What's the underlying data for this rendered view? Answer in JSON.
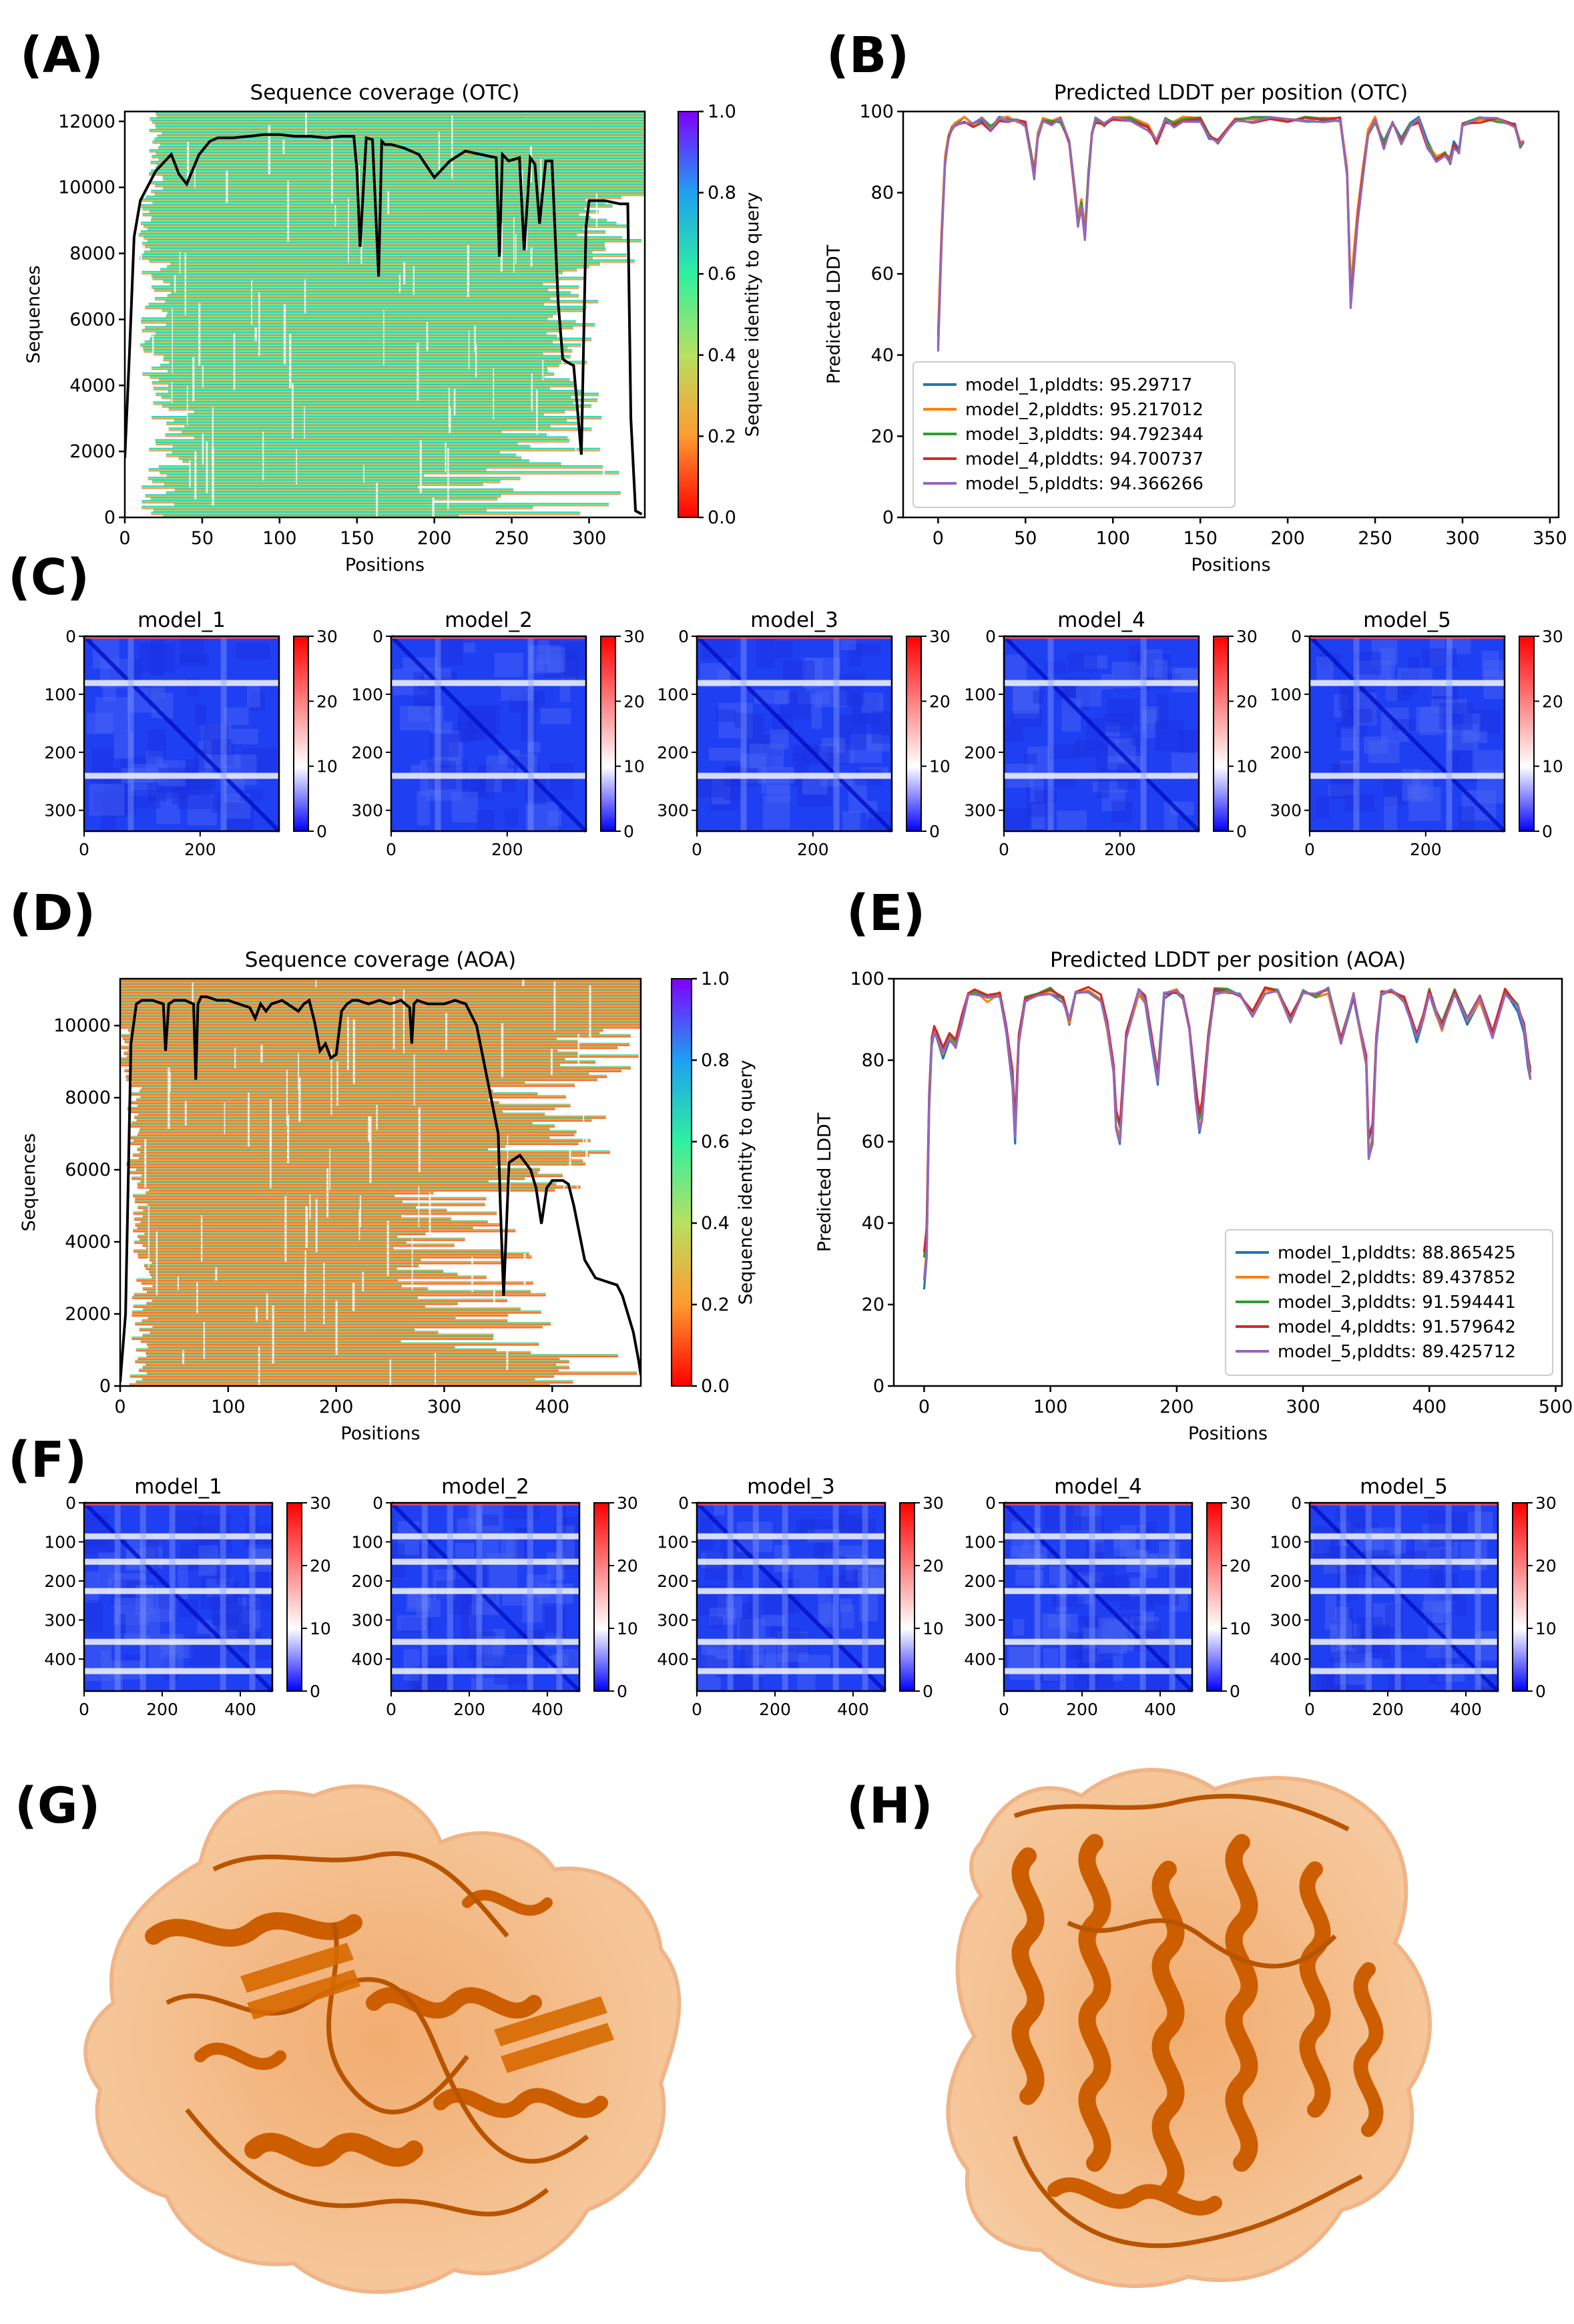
{
  "panel_labels": {
    "A": "(A)",
    "B": "(B)",
    "C": "(C)",
    "D": "(D)",
    "E": "(E)",
    "F": "(F)",
    "G": "(G)",
    "H": "(H)"
  },
  "colors": {
    "model_1": "#1f77b4",
    "model_2": "#ff7f0e",
    "model_3": "#2ca02c",
    "model_4": "#d62728",
    "model_5": "#9467bd"
  },
  "chart_data": [
    {
      "id": "A",
      "type": "heatmap",
      "title": "Sequence coverage (OTC)",
      "xlabel": "Positions",
      "ylabel": "Sequences",
      "xlim": [
        0,
        336
      ],
      "ylim": [
        0,
        12300
      ],
      "xticks": [
        0,
        50,
        100,
        150,
        200,
        250,
        300
      ],
      "yticks": [
        0,
        2000,
        4000,
        6000,
        8000,
        10000,
        12000
      ],
      "colorbar": {
        "label": "Sequence identity to query",
        "ticks": [
          "0.0",
          "0.2",
          "0.4",
          "0.6",
          "0.8",
          "1.0"
        ]
      },
      "coverage_line": {
        "x": [
          0,
          3,
          6,
          10,
          20,
          30,
          35,
          40,
          48,
          55,
          60,
          70,
          80,
          90,
          100,
          110,
          120,
          130,
          140,
          148,
          150,
          152,
          156,
          160,
          164,
          166,
          168,
          172,
          180,
          190,
          200,
          210,
          220,
          230,
          240,
          242,
          244,
          248,
          255,
          258,
          262,
          265,
          268,
          272,
          276,
          280,
          283,
          286,
          290,
          293,
          295,
          298,
          300,
          310,
          320,
          325,
          327,
          330,
          334
        ],
        "y": [
          1800,
          5000,
          8500,
          9600,
          10500,
          11000,
          10400,
          10100,
          11000,
          11400,
          11500,
          11500,
          11550,
          11600,
          11600,
          11550,
          11550,
          11500,
          11550,
          11550,
          10500,
          8200,
          11500,
          11450,
          7300,
          11400,
          11300,
          11300,
          11200,
          11000,
          10300,
          10800,
          11100,
          11000,
          10900,
          7900,
          11000,
          10800,
          10900,
          8100,
          10900,
          10700,
          8900,
          10800,
          10800,
          6500,
          4800,
          4700,
          4600,
          3000,
          1900,
          8800,
          9600,
          9600,
          9500,
          9500,
          3000,
          200,
          100
        ]
      }
    },
    {
      "id": "B",
      "type": "line",
      "title": "Predicted LDDT per position (OTC)",
      "xlabel": "Positions",
      "ylabel": "Predicted LDDT",
      "xlim": [
        -20,
        355
      ],
      "ylim": [
        0,
        100
      ],
      "xticks": [
        0,
        50,
        100,
        150,
        200,
        250,
        300,
        350
      ],
      "yticks": [
        0,
        20,
        40,
        60,
        80,
        100
      ],
      "legend_position": "lower-left",
      "series": [
        {
          "name": "model_1,plddts: 95.29717"
        },
        {
          "name": "model_2,plddts: 95.217012"
        },
        {
          "name": "model_3,plddts: 94.792344"
        },
        {
          "name": "model_4,plddts: 94.700737"
        },
        {
          "name": "model_5,plddts: 94.366266"
        }
      ],
      "x": [
        0,
        2,
        4,
        6,
        8,
        10,
        15,
        20,
        25,
        30,
        35,
        40,
        45,
        50,
        53,
        55,
        57,
        60,
        65,
        70,
        75,
        78,
        80,
        82,
        84,
        86,
        88,
        90,
        95,
        100,
        110,
        120,
        125,
        130,
        135,
        140,
        150,
        155,
        160,
        170,
        180,
        190,
        200,
        210,
        220,
        230,
        234,
        236,
        238,
        240,
        243,
        246,
        250,
        255,
        260,
        265,
        270,
        275,
        280,
        285,
        290,
        293,
        295,
        298,
        300,
        310,
        320,
        330,
        333,
        335
      ],
      "base": [
        45,
        70,
        88,
        94,
        96,
        97,
        98,
        97,
        98,
        96,
        98,
        98,
        98,
        97,
        90,
        85,
        94,
        98,
        97,
        98,
        93,
        82,
        73,
        78,
        70,
        85,
        95,
        98,
        97,
        98,
        98,
        96,
        93,
        98,
        97,
        98,
        98,
        94,
        93,
        98,
        98,
        98,
        98,
        98,
        98,
        98,
        85,
        55,
        65,
        75,
        85,
        95,
        98,
        92,
        97,
        93,
        97,
        98,
        92,
        89,
        90,
        88,
        92,
        90,
        97,
        98,
        98,
        97,
        92,
        93
      ],
      "offsets": [
        0,
        1.5,
        -1.2,
        -2.2,
        -3.0
      ]
    },
    {
      "id": "C",
      "type": "heatmap",
      "axis_max": 336,
      "xticks": [
        0,
        200
      ],
      "yticks": [
        0,
        100,
        200,
        300
      ],
      "colorbar_ticks": [
        "0",
        "10",
        "20",
        "30"
      ],
      "white_bands": [
        80,
        240
      ],
      "panels": [
        {
          "title": "model_1"
        },
        {
          "title": "model_2"
        },
        {
          "title": "model_3"
        },
        {
          "title": "model_4"
        },
        {
          "title": "model_5"
        }
      ]
    },
    {
      "id": "D",
      "type": "heatmap",
      "title": "Sequence coverage (AOA)",
      "xlabel": "Positions",
      "ylabel": "Sequences",
      "xlim": [
        0,
        482
      ],
      "ylim": [
        0,
        11300
      ],
      "xticks": [
        0,
        100,
        200,
        300,
        400
      ],
      "yticks": [
        0,
        2000,
        4000,
        6000,
        8000,
        10000
      ],
      "colorbar": {
        "label": "Sequence identity to query",
        "ticks": [
          "0.0",
          "0.2",
          "0.4",
          "0.6",
          "0.8",
          "1.0"
        ]
      },
      "coverage_line": {
        "x": [
          0,
          5,
          10,
          15,
          20,
          30,
          40,
          42,
          45,
          50,
          60,
          68,
          70,
          72,
          75,
          80,
          90,
          100,
          120,
          125,
          130,
          135,
          140,
          150,
          160,
          165,
          170,
          175,
          180,
          185,
          190,
          195,
          200,
          205,
          210,
          215,
          220,
          230,
          240,
          250,
          260,
          268,
          270,
          272,
          275,
          285,
          295,
          300,
          310,
          320,
          330,
          340,
          350,
          352,
          355,
          360,
          370,
          380,
          385,
          390,
          395,
          400,
          410,
          415,
          420,
          430,
          440,
          450,
          460,
          465,
          470,
          475,
          480,
          482
        ],
        "y": [
          100,
          2000,
          9500,
          10600,
          10700,
          10700,
          10600,
          9300,
          10600,
          10700,
          10700,
          10600,
          8500,
          10600,
          10800,
          10800,
          10700,
          10700,
          10500,
          10200,
          10600,
          10400,
          10600,
          10700,
          10500,
          10400,
          10600,
          10700,
          10100,
          9300,
          9500,
          9100,
          9200,
          10400,
          10600,
          10700,
          10700,
          10600,
          10700,
          10600,
          10700,
          10500,
          9500,
          10600,
          10700,
          10600,
          10600,
          10600,
          10700,
          10600,
          10000,
          8500,
          7000,
          5000,
          2500,
          6200,
          6400,
          6000,
          5500,
          4500,
          5500,
          5700,
          5700,
          5600,
          5000,
          3500,
          3000,
          2900,
          2800,
          2500,
          2000,
          1500,
          700,
          300
        ]
      }
    },
    {
      "id": "E",
      "type": "line",
      "title": "Predicted LDDT per position (AOA)",
      "xlabel": "Positions",
      "ylabel": "Predicted LDDT",
      "xlim": [
        -24,
        505
      ],
      "ylim": [
        0,
        100
      ],
      "xticks": [
        0,
        100,
        200,
        300,
        400,
        500
      ],
      "yticks": [
        0,
        20,
        40,
        60,
        80,
        100
      ],
      "legend_position": "lower-right",
      "series": [
        {
          "name": "model_1,plddts: 88.865425"
        },
        {
          "name": "model_2,plddts: 89.437852"
        },
        {
          "name": "model_3,plddts: 91.594441"
        },
        {
          "name": "model_4,plddts: 91.579642"
        },
        {
          "name": "model_5,plddts: 89.425712"
        }
      ],
      "x": [
        0,
        2,
        4,
        6,
        8,
        10,
        15,
        20,
        25,
        30,
        35,
        40,
        50,
        60,
        65,
        70,
        72,
        75,
        80,
        90,
        100,
        110,
        115,
        120,
        130,
        140,
        145,
        150,
        152,
        155,
        160,
        170,
        175,
        180,
        185,
        190,
        200,
        205,
        210,
        215,
        218,
        220,
        225,
        230,
        240,
        250,
        260,
        270,
        280,
        290,
        300,
        310,
        320,
        330,
        340,
        345,
        350,
        352,
        355,
        358,
        362,
        370,
        380,
        390,
        395,
        400,
        405,
        410,
        420,
        430,
        440,
        450,
        460,
        470,
        475,
        478,
        480
      ],
      "base": [
        28,
        35,
        70,
        85,
        88,
        86,
        82,
        86,
        84,
        90,
        96,
        97,
        95,
        96,
        88,
        75,
        62,
        85,
        95,
        96,
        97,
        95,
        90,
        97,
        97,
        95,
        88,
        78,
        65,
        62,
        86,
        97,
        95,
        85,
        75,
        96,
        97,
        95,
        88,
        72,
        64,
        67,
        85,
        97,
        97,
        96,
        91,
        97,
        97,
        90,
        97,
        96,
        97,
        85,
        96,
        88,
        80,
        58,
        62,
        85,
        96,
        97,
        95,
        86,
        90,
        97,
        92,
        88,
        97,
        90,
        95,
        86,
        97,
        93,
        88,
        80,
        76
      ],
      "offsets": [
        -2.5,
        -1.0,
        2.2,
        2.8,
        -1.5
      ]
    },
    {
      "id": "F",
      "type": "heatmap",
      "axis_max": 482,
      "xticks": [
        0,
        200,
        400
      ],
      "yticks": [
        0,
        100,
        200,
        300,
        400
      ],
      "colorbar_ticks": [
        "0",
        "10",
        "20",
        "30"
      ],
      "white_bands": [
        85,
        150,
        225,
        355,
        430
      ],
      "panels": [
        {
          "title": "model_1"
        },
        {
          "title": "model_2"
        },
        {
          "title": "model_3"
        },
        {
          "title": "model_4"
        },
        {
          "title": "model_5"
        }
      ]
    }
  ]
}
